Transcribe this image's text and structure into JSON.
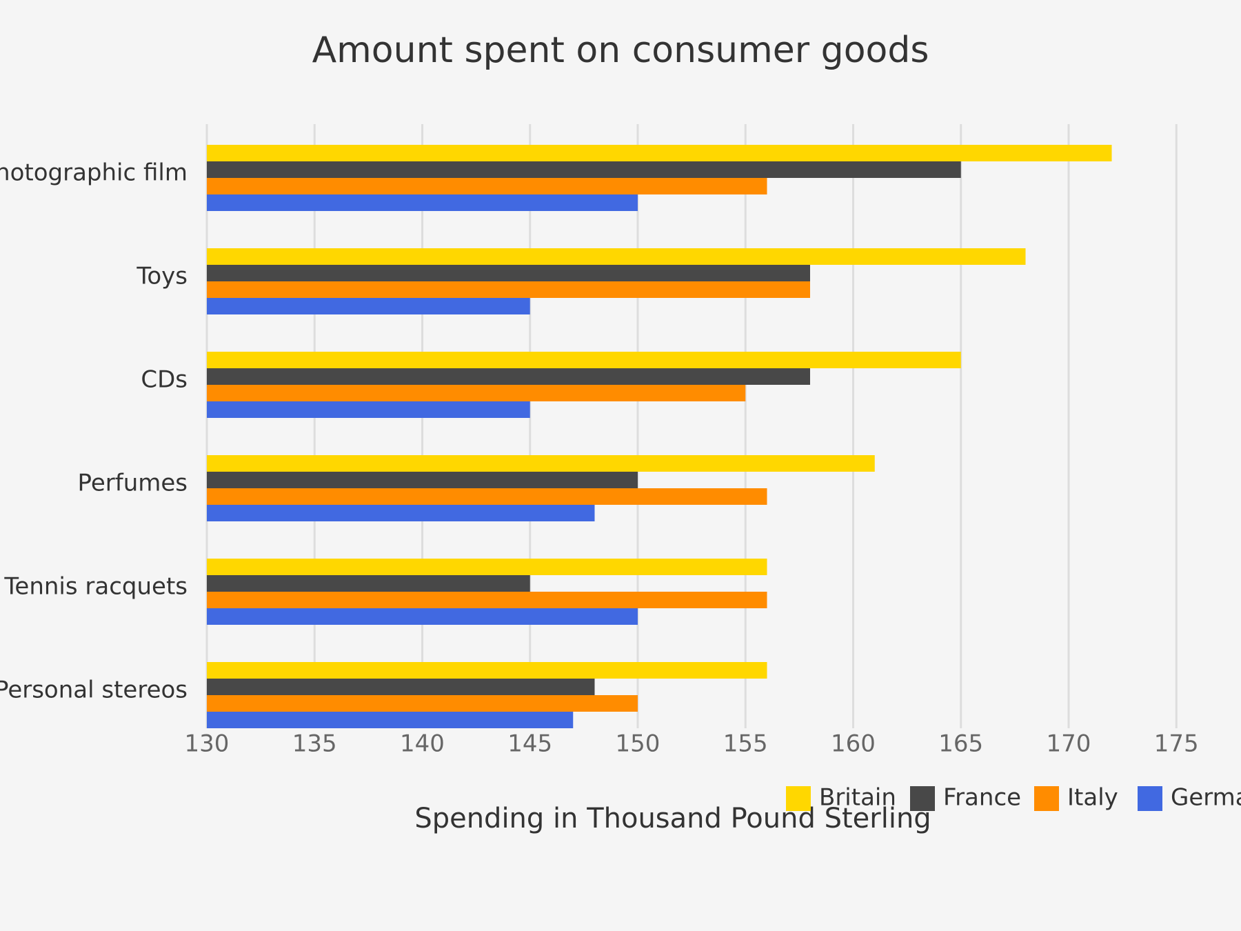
{
  "chart_data": {
    "type": "bar",
    "orientation": "horizontal",
    "title": "Amount spent on consumer goods",
    "xlabel": "Spending in Thousand Pound Sterling",
    "ylabel": "",
    "categories": [
      "Photographic film",
      "Toys",
      "CDs",
      "Perfumes",
      "Tennis racquets",
      "Personal stereos"
    ],
    "xlim": [
      130,
      178
    ],
    "xticks": [
      130,
      135,
      140,
      145,
      150,
      155,
      160,
      165,
      170,
      175
    ],
    "grid": true,
    "legend_position": "bottom-right",
    "series": [
      {
        "name": "Britain",
        "color": "#FFD700",
        "values": [
          172,
          168,
          165,
          161,
          156,
          156
        ]
      },
      {
        "name": "France",
        "color": "#484848",
        "values": [
          165,
          158,
          158,
          150,
          145,
          148
        ]
      },
      {
        "name": "Italy",
        "color": "#FF8C00",
        "values": [
          156,
          158,
          155,
          156,
          156,
          150
        ]
      },
      {
        "name": "Germany",
        "color": "#4169E1",
        "values": [
          150,
          145,
          145,
          148,
          150,
          147
        ]
      }
    ]
  }
}
